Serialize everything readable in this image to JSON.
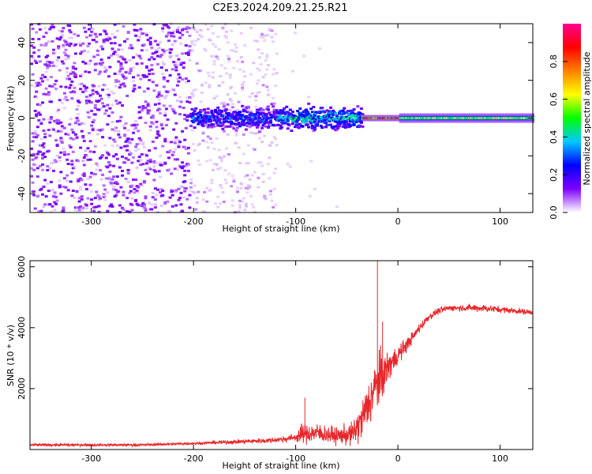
{
  "title": "C2E3.2024.209.21.25.R21",
  "chart_data": [
    {
      "type": "heatmap",
      "xlabel": "Height of straight line (km)",
      "ylabel": "Frequency (Hz)",
      "xlim": [
        -360,
        132
      ],
      "ylim": [
        -50,
        50
      ],
      "xticks": [
        -300,
        -200,
        -100,
        0,
        100
      ],
      "yticks": [
        -40,
        -20,
        0,
        20,
        40
      ],
      "colorbar": {
        "label": "Normalized spectral amplitude",
        "range": [
          0,
          1
        ],
        "ticks": [
          0.0,
          0.2,
          0.4,
          0.6,
          0.8
        ],
        "colormap": [
          "#ffffff",
          "#7f00ff",
          "#0000ff",
          "#00c8ff",
          "#00ff00",
          "#ffff00",
          "#ff8000",
          "#ff0000",
          "#ff0090"
        ]
      },
      "regions": [
        {
          "x": [
            -360,
            -205
          ],
          "pattern": "scattered noise",
          "freq_spread": [
            -50,
            50
          ],
          "amplitude": 0.1
        },
        {
          "x": [
            -205,
            -120
          ],
          "pattern": "scattered noise with line near 0 Hz",
          "freq_spread": [
            -50,
            50
          ],
          "line_amplitude": 0.35
        },
        {
          "x": [
            -120,
            -35
          ],
          "pattern": "line near 0 Hz",
          "freq_spread": [
            -10,
            10
          ],
          "line_amplitude": 0.5
        },
        {
          "x": [
            -35,
            0
          ],
          "pattern": "narrow strong line",
          "freq_spread": [
            -2,
            2
          ],
          "line_amplitude": 0.95
        },
        {
          "x": [
            0,
            132
          ],
          "pattern": "narrow line",
          "freq_spread": [
            -3,
            3
          ],
          "line_amplitude": 0.5
        }
      ]
    },
    {
      "type": "line",
      "xlabel": "Height of straight line (km)",
      "ylabel": "SNR (10 * v/v)",
      "xlim": [
        -360,
        132
      ],
      "ylim": [
        0,
        6200
      ],
      "xticks": [
        -300,
        -200,
        -100,
        0,
        100
      ],
      "yticks": [
        2000,
        4000,
        6000
      ],
      "color": "#e8262a",
      "x": [
        -360,
        -300,
        -250,
        -200,
        -160,
        -125,
        -110,
        -100,
        -95,
        -80,
        -60,
        -45,
        -40,
        -35,
        -30,
        -25,
        -20,
        -15,
        -10,
        -5,
        0,
        5,
        10,
        15,
        20,
        25,
        30,
        40,
        50,
        60,
        80,
        100,
        132
      ],
      "y": [
        150,
        150,
        150,
        200,
        250,
        300,
        350,
        400,
        500,
        550,
        450,
        500,
        700,
        1000,
        1400,
        1800,
        2200,
        2400,
        2700,
        2900,
        3100,
        3300,
        3500,
        3700,
        3950,
        4150,
        4350,
        4550,
        4650,
        4650,
        4650,
        4600,
        4500
      ],
      "noise": [
        40,
        40,
        40,
        40,
        60,
        80,
        100,
        120,
        300,
        300,
        250,
        350,
        500,
        600,
        700,
        800,
        900,
        700,
        500,
        400,
        300,
        250,
        200,
        170,
        150,
        130,
        100,
        100,
        90,
        90,
        120,
        100,
        80
      ],
      "spikes": [
        {
          "x": -20,
          "y": 6200
        },
        {
          "x": -15,
          "y": 4200
        },
        {
          "x": -91,
          "y": 1700
        }
      ]
    }
  ]
}
